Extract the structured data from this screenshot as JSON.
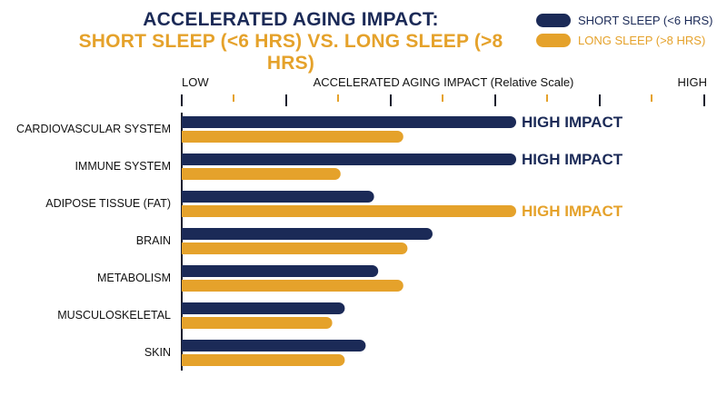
{
  "title_line1": "ACCELERATED AGING IMPACT:",
  "title_line2": "SHORT SLEEP (<6 HRS) VS. LONG SLEEP (>8 HRS)",
  "colors": {
    "short": "#1b2a57",
    "long": "#e5a22b"
  },
  "chart_data": {
    "type": "bar",
    "orientation": "horizontal",
    "title": "ACCELERATED AGING IMPACT: SHORT SLEEP (<6 HRS) VS. LONG SLEEP (>8 HRS)",
    "xlabel": "ACCELERATED AGING IMPACT (Relative Scale)",
    "axis_low_label": "LOW",
    "axis_high_label": "HIGH",
    "xlim": [
      0,
      10
    ],
    "legend_position": "top-right",
    "grid": false,
    "categories": [
      "CARDIOVASCULAR SYSTEM",
      "IMMUNE SYSTEM",
      "ADIPOSE TISSUE (FAT)",
      "BRAIN",
      "METABOLISM",
      "MUSCULOSKELETAL",
      "SKIN"
    ],
    "series": [
      {
        "name": "SHORT SLEEP (<6 HRS)",
        "values": [
          8.0,
          8.0,
          4.6,
          6.0,
          4.7,
          3.9,
          4.4
        ]
      },
      {
        "name": "LONG SLEEP (>8 HRS)",
        "values": [
          5.3,
          3.8,
          8.0,
          5.4,
          5.3,
          3.6,
          3.9
        ]
      }
    ],
    "annotations": [
      {
        "category": "CARDIOVASCULAR SYSTEM",
        "series": 0,
        "text": "HIGH IMPACT"
      },
      {
        "category": "IMMUNE SYSTEM",
        "series": 0,
        "text": "HIGH IMPACT"
      },
      {
        "category": "ADIPOSE TISSUE (FAT)",
        "series": 1,
        "text": "HIGH IMPACT"
      }
    ]
  }
}
